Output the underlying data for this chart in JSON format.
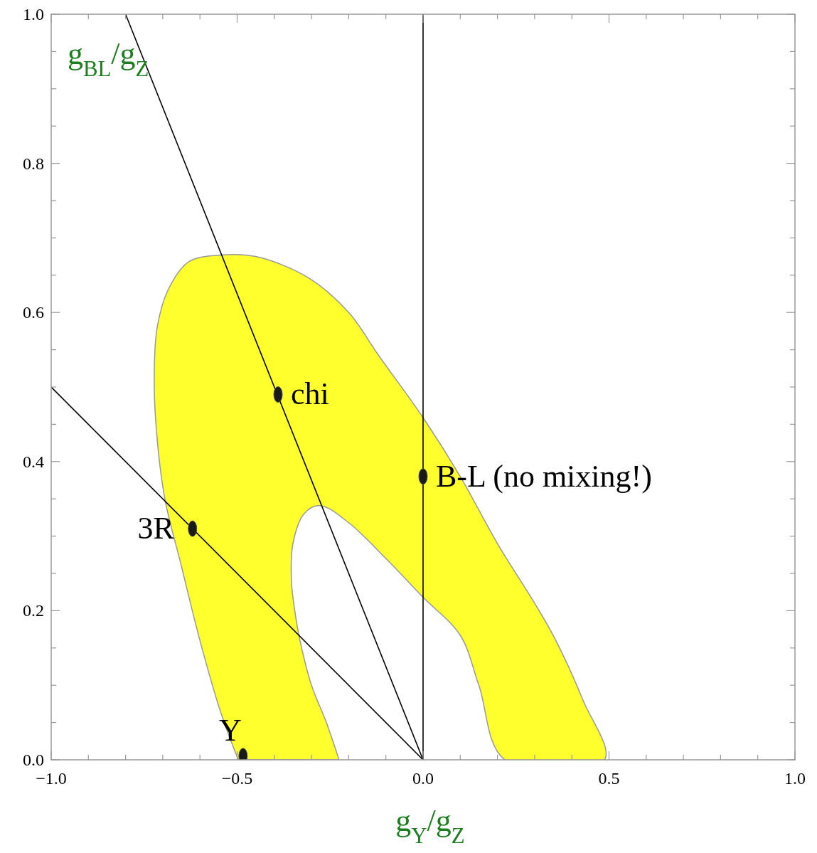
{
  "chart_data": {
    "type": "scatter",
    "xlabel": "g$_{Y}$/g$_{Z}$",
    "ylabel": "g$_{BL}$/g$_{Z}$",
    "xlim": [
      -1,
      1
    ],
    "ylim": [
      0,
      1
    ],
    "xticks": [
      {
        "value": -1,
        "label": "−1.0"
      },
      {
        "value": -0.9,
        "label": null
      },
      {
        "value": -0.8,
        "label": null
      },
      {
        "value": -0.7,
        "label": null
      },
      {
        "value": -0.6,
        "label": null
      },
      {
        "value": -0.5,
        "label": "−0.5"
      },
      {
        "value": -0.4,
        "label": null
      },
      {
        "value": -0.3,
        "label": null
      },
      {
        "value": -0.2,
        "label": null
      },
      {
        "value": -0.1,
        "label": null
      },
      {
        "value": 0,
        "label": "0.0"
      },
      {
        "value": 0.1,
        "label": null
      },
      {
        "value": 0.2,
        "label": null
      },
      {
        "value": 0.3,
        "label": null
      },
      {
        "value": 0.4,
        "label": null
      },
      {
        "value": 0.5,
        "label": "0.5"
      },
      {
        "value": 0.6,
        "label": null
      },
      {
        "value": 0.7,
        "label": null
      },
      {
        "value": 0.8,
        "label": null
      },
      {
        "value": 0.9,
        "label": null
      },
      {
        "value": 1,
        "label": "1.0"
      }
    ],
    "yticks": [
      {
        "value": 0,
        "label": "0.0"
      },
      {
        "value": 0.05,
        "label": null
      },
      {
        "value": 0.1,
        "label": null
      },
      {
        "value": 0.15,
        "label": null
      },
      {
        "value": 0.2,
        "label": "0.2"
      },
      {
        "value": 0.25,
        "label": null
      },
      {
        "value": 0.3,
        "label": null
      },
      {
        "value": 0.35,
        "label": null
      },
      {
        "value": 0.4,
        "label": "0.4"
      },
      {
        "value": 0.45,
        "label": null
      },
      {
        "value": 0.5,
        "label": null
      },
      {
        "value": 0.55,
        "label": null
      },
      {
        "value": 0.6,
        "label": "0.6"
      },
      {
        "value": 0.65,
        "label": null
      },
      {
        "value": 0.7,
        "label": null
      },
      {
        "value": 0.75,
        "label": null
      },
      {
        "value": 0.8,
        "label": "0.8"
      },
      {
        "value": 0.85,
        "label": null
      },
      {
        "value": 0.9,
        "label": null
      },
      {
        "value": 0.95,
        "label": null
      },
      {
        "value": 1,
        "label": "1.0"
      }
    ],
    "grid": false,
    "series": [
      {
        "type": "area",
        "marker": "none",
        "color": "#ffff2e",
        "x": [
          -0.497,
          -0.545,
          -0.6,
          -0.65,
          -0.694,
          -0.715,
          -0.723,
          -0.715,
          -0.685,
          -0.63,
          -0.545,
          -0.45,
          -0.31,
          -0.2,
          -0.119,
          0,
          0.1,
          0.2,
          0.3,
          0.354,
          0.43,
          0.488,
          0.22,
          0.15,
          0.1,
          0,
          -0.1,
          -0.2,
          -0.277,
          -0.32,
          -0.35,
          -0.354,
          -0.345,
          -0.331,
          -0.3,
          -0.26,
          -0.226
        ],
        "values": [
          0,
          0.065,
          0.16,
          0.26,
          0.349,
          0.43,
          0.504,
          0.58,
          0.631,
          0.668,
          0.677,
          0.675,
          0.647,
          0.6,
          0.542,
          0.459,
          0.38,
          0.29,
          0.21,
          0.163,
          0.08,
          0,
          0,
          0.1,
          0.167,
          0.218,
          0.27,
          0.318,
          0.341,
          0.33,
          0.29,
          0.24,
          0.2,
          0.16,
          0.1,
          0.05,
          0
        ]
      },
      {
        "type": "line",
        "marker": "none",
        "color": "#000000",
        "x": [
          -0.8,
          0
        ],
        "values": [
          1,
          0
        ]
      },
      {
        "type": "line",
        "marker": "none",
        "color": "#000000",
        "x": [
          -1,
          0
        ],
        "values": [
          0.5,
          0
        ]
      },
      {
        "marker": "circle",
        "color": "#1a1a1a",
        "x": [
          -0.39,
          0,
          -0.62,
          -0.484
        ],
        "values": [
          0.49,
          0.38,
          0.31,
          0.005
        ]
      }
    ],
    "ref_lines": [
      {
        "axis": "x",
        "value": 0,
        "color": "#000000"
      }
    ],
    "annotations": [
      {
        "text": "chi",
        "x": -0.39,
        "y": 0.49
      },
      {
        "text": "B-L (no mixing!)",
        "x": 0,
        "y": 0.38
      },
      {
        "text": "3R",
        "x": -0.62,
        "y": 0.31
      },
      {
        "text": "Y",
        "x": -0.484,
        "y": 0.005
      }
    ]
  }
}
